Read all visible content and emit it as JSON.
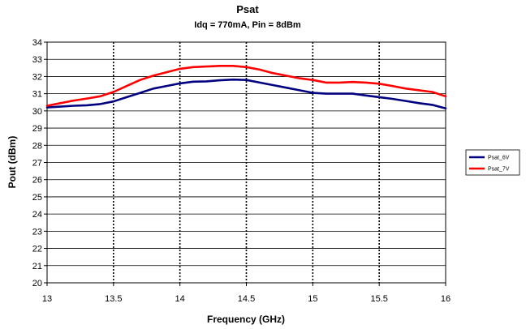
{
  "chart_data": {
    "type": "line",
    "title": "Psat",
    "subtitle": "Idq = 770mA, Pin = 8dBm",
    "xlabel": "Frequency (GHz)",
    "ylabel": "Pout (dBm)",
    "xlim": [
      13,
      16
    ],
    "ylim": [
      20,
      34
    ],
    "x_ticks": [
      "13",
      "13.5",
      "14",
      "14.5",
      "15",
      "15.5",
      "16"
    ],
    "y_ticks": [
      "20",
      "21",
      "22",
      "23",
      "24",
      "25",
      "26",
      "27",
      "28",
      "29",
      "30",
      "31",
      "32",
      "33",
      "34"
    ],
    "horizontal_grid": true,
    "vertical_grid": "dotted",
    "legend_position": "right",
    "series": [
      {
        "name": "Psat_6V",
        "color": "#000080",
        "x": [
          13,
          13.1,
          13.2,
          13.3,
          13.4,
          13.5,
          13.6,
          13.7,
          13.8,
          13.9,
          14.0,
          14.1,
          14.2,
          14.3,
          14.4,
          14.5,
          14.6,
          14.7,
          14.8,
          14.9,
          15.0,
          15.1,
          15.2,
          15.3,
          15.4,
          15.5,
          15.6,
          15.7,
          15.8,
          15.9,
          16.0
        ],
        "values": [
          30.2,
          30.25,
          30.3,
          30.33,
          30.4,
          30.55,
          30.8,
          31.05,
          31.3,
          31.45,
          31.6,
          31.7,
          31.72,
          31.78,
          31.82,
          31.8,
          31.65,
          31.5,
          31.35,
          31.2,
          31.05,
          31.0,
          31.0,
          31.0,
          30.9,
          30.8,
          30.7,
          30.58,
          30.45,
          30.35,
          30.15
        ]
      },
      {
        "name": "Psat_7V",
        "color": "#ff0000",
        "x": [
          13,
          13.1,
          13.2,
          13.3,
          13.4,
          13.5,
          13.6,
          13.7,
          13.8,
          13.9,
          14.0,
          14.1,
          14.2,
          14.3,
          14.4,
          14.5,
          14.6,
          14.7,
          14.8,
          14.9,
          15.0,
          15.1,
          15.2,
          15.3,
          15.4,
          15.5,
          15.6,
          15.7,
          15.8,
          15.9,
          16.0
        ],
        "values": [
          30.3,
          30.45,
          30.6,
          30.72,
          30.85,
          31.1,
          31.45,
          31.8,
          32.05,
          32.25,
          32.45,
          32.55,
          32.58,
          32.62,
          32.62,
          32.55,
          32.4,
          32.2,
          32.05,
          31.9,
          31.8,
          31.65,
          31.65,
          31.68,
          31.65,
          31.58,
          31.45,
          31.3,
          31.2,
          31.1,
          30.85
        ]
      }
    ]
  }
}
